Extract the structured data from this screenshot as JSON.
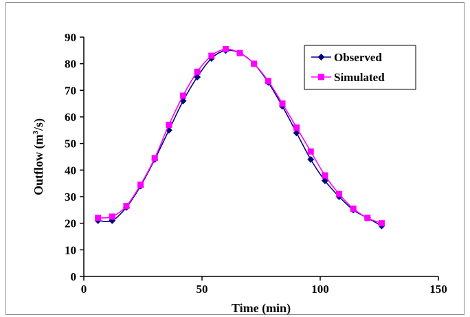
{
  "chart_data": {
    "type": "line",
    "title": "",
    "xlabel": "Time (min)",
    "ylabel": "Outflow (m³/s)",
    "ylabel_main": "Outflow (m",
    "ylabel_sup": "3",
    "ylabel_tail": "/s)",
    "xlim": [
      0,
      150
    ],
    "ylim": [
      0,
      90
    ],
    "xticks": [
      0,
      50,
      100,
      150
    ],
    "yticks": [
      0,
      10,
      20,
      30,
      40,
      50,
      60,
      70,
      80,
      90
    ],
    "grid": false,
    "legend_position": "top-right",
    "series": [
      {
        "name": "Observed",
        "color": "#000080",
        "marker": "diamond",
        "x": [
          6,
          12,
          18,
          24,
          30,
          36,
          42,
          48,
          54,
          60,
          66,
          72,
          78,
          84,
          90,
          96,
          102,
          108,
          114,
          120,
          126
        ],
        "y": [
          21,
          21,
          26,
          34,
          44,
          55,
          66,
          75,
          82,
          85,
          84,
          80,
          73,
          64,
          54,
          44,
          36,
          30,
          25,
          22,
          19
        ]
      },
      {
        "name": "Simulated",
        "color": "#ff00ff",
        "marker": "square",
        "x": [
          6,
          12,
          18,
          24,
          30,
          36,
          42,
          48,
          54,
          60,
          66,
          72,
          78,
          84,
          90,
          96,
          102,
          108,
          114,
          120,
          126
        ],
        "y": [
          22,
          22.5,
          26.5,
          34.5,
          44.5,
          57,
          68,
          77,
          83,
          85.5,
          84,
          80,
          73.5,
          65,
          56,
          47,
          38,
          31,
          25.5,
          22,
          20
        ]
      }
    ]
  }
}
